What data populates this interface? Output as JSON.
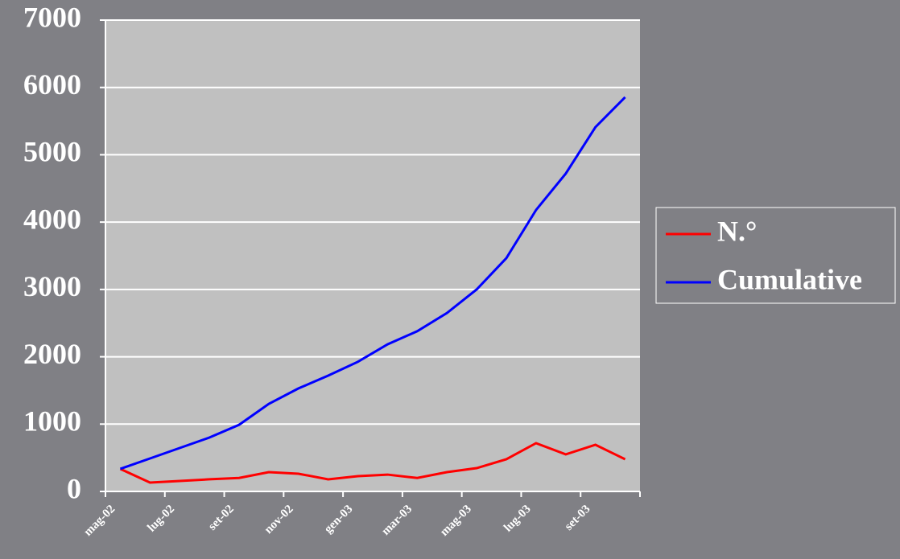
{
  "chart_data": {
    "type": "line",
    "categories": [
      "mag-02",
      null,
      "lug-02",
      null,
      "set-02",
      null,
      "nov-02",
      null,
      "gen-03",
      null,
      "mar-03",
      null,
      "mag-03",
      null,
      "lug-03",
      null,
      "set-03",
      null
    ],
    "series": [
      {
        "name": "N.°",
        "color": "#ff0000",
        "values": [
          335,
          131,
          155,
          180,
          200,
          287,
          263,
          180,
          227,
          250,
          200,
          287,
          346,
          478,
          717,
          550,
          693,
          478
        ]
      },
      {
        "name": "Cumulative",
        "color": "#0000ff",
        "values": [
          335,
          490,
          645,
          800,
          990,
          1300,
          1530,
          1720,
          1925,
          2185,
          2380,
          2650,
          3000,
          3465,
          4180,
          4720,
          5410,
          5855
        ]
      }
    ],
    "ylim": [
      0,
      7000
    ],
    "yticks": [
      0,
      1000,
      2000,
      3000,
      4000,
      5000,
      6000,
      7000
    ],
    "grid": true,
    "legend": "right"
  }
}
